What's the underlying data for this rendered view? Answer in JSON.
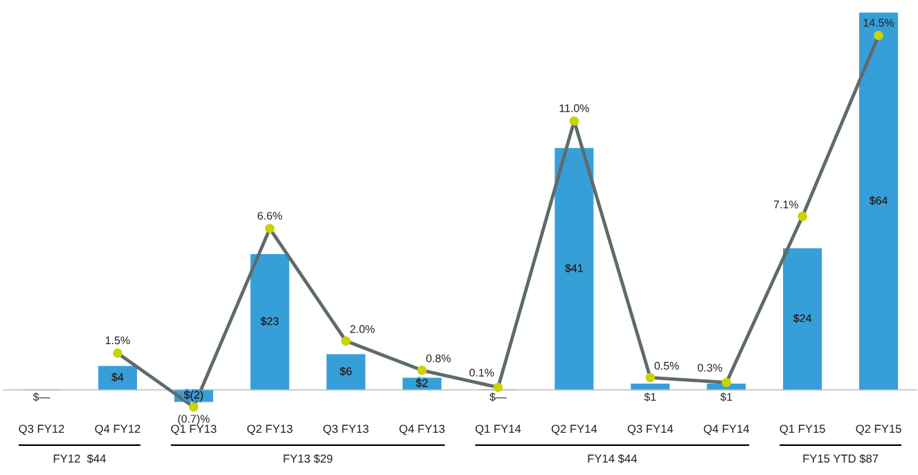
{
  "chart_data": {
    "type": "bar",
    "categories": [
      "Q3 FY12",
      "Q4 FY12",
      "Q1 FY13",
      "Q2 FY13",
      "Q3 FY13",
      "Q4 FY13",
      "Q1 FY14",
      "Q2 FY14",
      "Q3 FY14",
      "Q4 FY14",
      "Q1 FY15",
      "Q2 FY15"
    ],
    "series": [
      {
        "color": "#379fd8",
        "values": [
          0,
          4,
          -2,
          23,
          6,
          2,
          0,
          41,
          1,
          1,
          24,
          64
        ],
        "value_labels": [
          "$—",
          "$4",
          "$(2)",
          "$23",
          "$6",
          "$2",
          "$—",
          "$41",
          "$1",
          "$1",
          "$24",
          "$64"
        ]
      },
      {
        "type": "line",
        "axis": "y2",
        "color": "#5f6b6b",
        "marker": "circle",
        "line_style": "solid",
        "colors": [
          null,
          "#c8d400",
          "#c8d400",
          "#c8d400",
          "#c8d400",
          "#c8d400",
          "#c8d400",
          "#c8d400",
          "#c8d400",
          "#c8d400",
          "#c8d400",
          "#c8d400"
        ],
        "values": [
          null,
          1.5,
          -0.7,
          6.6,
          2.0,
          0.8,
          0.1,
          11.0,
          0.5,
          0.3,
          7.1,
          14.5
        ],
        "value_labels": [
          null,
          "1.5%",
          "(0.7)%",
          "6.6%",
          "2.0%",
          "0.8%",
          "0.1%",
          "11.0%",
          "0.5%",
          "0.3%",
          "7.1%",
          "14.5%"
        ]
      }
    ],
    "tick_labels": "x",
    "annotations": [
      "FY12  $44",
      "FY13 $29",
      "FY14 $44",
      "FY15 YTD $87"
    ]
  }
}
